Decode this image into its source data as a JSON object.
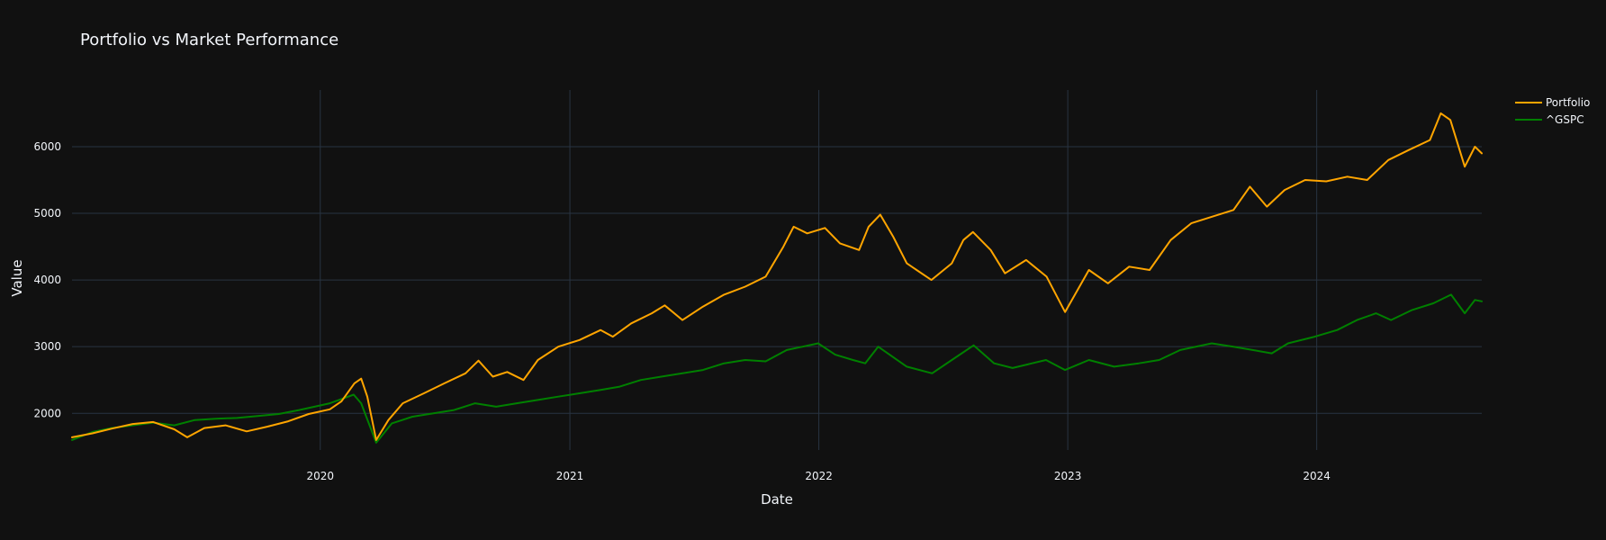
{
  "chart_data": {
    "type": "line",
    "title": "Portfolio vs Market Performance",
    "xlabel": "Date",
    "ylabel": "Value",
    "x_range": [
      "2019-01-02",
      "2024-08-30"
    ],
    "y_range": [
      1450,
      6850
    ],
    "x_ticks": [
      {
        "value": "2020-01-01",
        "label": "2020"
      },
      {
        "value": "2021-01-01",
        "label": "2021"
      },
      {
        "value": "2022-01-01",
        "label": "2022"
      },
      {
        "value": "2023-01-01",
        "label": "2023"
      },
      {
        "value": "2024-01-01",
        "label": "2024"
      }
    ],
    "y_ticks": [
      2000,
      3000,
      4000,
      5000,
      6000
    ],
    "grid": true,
    "legend_position": "top-right",
    "background": "#111111",
    "grid_color": "#283442",
    "series": [
      {
        "name": "Portfolio",
        "color": "#ffa500",
        "points": [
          [
            "2019-01-02",
            1640
          ],
          [
            "2019-02-01",
            1700
          ],
          [
            "2019-03-01",
            1770
          ],
          [
            "2019-04-01",
            1840
          ],
          [
            "2019-05-01",
            1870
          ],
          [
            "2019-06-01",
            1760
          ],
          [
            "2019-06-20",
            1640
          ],
          [
            "2019-07-15",
            1780
          ],
          [
            "2019-08-15",
            1820
          ],
          [
            "2019-09-15",
            1730
          ],
          [
            "2019-10-15",
            1800
          ],
          [
            "2019-11-15",
            1880
          ],
          [
            "2019-12-15",
            1990
          ],
          [
            "2020-01-15",
            2060
          ],
          [
            "2020-02-01",
            2180
          ],
          [
            "2020-02-20",
            2450
          ],
          [
            "2020-03-01",
            2520
          ],
          [
            "2020-03-10",
            2250
          ],
          [
            "2020-03-23",
            1600
          ],
          [
            "2020-04-10",
            1900
          ],
          [
            "2020-05-01",
            2150
          ],
          [
            "2020-06-01",
            2300
          ],
          [
            "2020-07-01",
            2450
          ],
          [
            "2020-08-01",
            2600
          ],
          [
            "2020-08-20",
            2790
          ],
          [
            "2020-09-10",
            2550
          ],
          [
            "2020-10-01",
            2620
          ],
          [
            "2020-10-25",
            2500
          ],
          [
            "2020-11-15",
            2800
          ],
          [
            "2020-12-15",
            3000
          ],
          [
            "2021-01-15",
            3100
          ],
          [
            "2021-02-15",
            3250
          ],
          [
            "2021-03-05",
            3150
          ],
          [
            "2021-04-01",
            3350
          ],
          [
            "2021-05-01",
            3500
          ],
          [
            "2021-05-20",
            3620
          ],
          [
            "2021-06-15",
            3400
          ],
          [
            "2021-07-15",
            3600
          ],
          [
            "2021-08-15",
            3780
          ],
          [
            "2021-09-15",
            3900
          ],
          [
            "2021-10-15",
            4050
          ],
          [
            "2021-11-10",
            4500
          ],
          [
            "2021-11-25",
            4800
          ],
          [
            "2021-12-15",
            4700
          ],
          [
            "2022-01-10",
            4780
          ],
          [
            "2022-02-01",
            4550
          ],
          [
            "2022-03-01",
            4450
          ],
          [
            "2022-03-15",
            4800
          ],
          [
            "2022-04-01",
            4980
          ],
          [
            "2022-04-20",
            4650
          ],
          [
            "2022-05-10",
            4250
          ],
          [
            "2022-06-15",
            4000
          ],
          [
            "2022-07-15",
            4250
          ],
          [
            "2022-08-01",
            4600
          ],
          [
            "2022-08-15",
            4720
          ],
          [
            "2022-09-10",
            4450
          ],
          [
            "2022-10-01",
            4100
          ],
          [
            "2022-11-01",
            4300
          ],
          [
            "2022-12-01",
            4050
          ],
          [
            "2022-12-28",
            3520
          ],
          [
            "2023-02-01",
            4150
          ],
          [
            "2023-03-01",
            3950
          ],
          [
            "2023-04-01",
            4200
          ],
          [
            "2023-05-01",
            4150
          ],
          [
            "2023-06-01",
            4600
          ],
          [
            "2023-07-01",
            4850
          ],
          [
            "2023-08-01",
            4950
          ],
          [
            "2023-09-01",
            5050
          ],
          [
            "2023-09-25",
            5400
          ],
          [
            "2023-10-20",
            5100
          ],
          [
            "2023-11-15",
            5350
          ],
          [
            "2023-12-15",
            5500
          ],
          [
            "2024-01-15",
            5480
          ],
          [
            "2024-02-15",
            5550
          ],
          [
            "2024-03-15",
            5500
          ],
          [
            "2024-04-15",
            5800
          ],
          [
            "2024-05-15",
            5950
          ],
          [
            "2024-06-15",
            6100
          ],
          [
            "2024-07-01",
            6500
          ],
          [
            "2024-07-15",
            6400
          ],
          [
            "2024-08-05",
            5700
          ],
          [
            "2024-08-20",
            6000
          ],
          [
            "2024-08-30",
            5900
          ]
        ]
      },
      {
        "name": "^GSPC",
        "color": "#008000",
        "points": [
          [
            "2019-01-02",
            1600
          ],
          [
            "2019-02-01",
            1720
          ],
          [
            "2019-03-01",
            1780
          ],
          [
            "2019-04-01",
            1820
          ],
          [
            "2019-05-01",
            1860
          ],
          [
            "2019-06-01",
            1820
          ],
          [
            "2019-07-01",
            1900
          ],
          [
            "2019-08-01",
            1920
          ],
          [
            "2019-09-01",
            1930
          ],
          [
            "2019-10-01",
            1960
          ],
          [
            "2019-11-01",
            1990
          ],
          [
            "2019-12-01",
            2050
          ],
          [
            "2020-01-15",
            2150
          ],
          [
            "2020-02-19",
            2280
          ],
          [
            "2020-03-01",
            2150
          ],
          [
            "2020-03-23",
            1560
          ],
          [
            "2020-04-15",
            1850
          ],
          [
            "2020-05-15",
            1950
          ],
          [
            "2020-06-15",
            2000
          ],
          [
            "2020-07-15",
            2050
          ],
          [
            "2020-08-15",
            2150
          ],
          [
            "2020-09-15",
            2100
          ],
          [
            "2020-10-15",
            2150
          ],
          [
            "2020-11-15",
            2200
          ],
          [
            "2020-12-15",
            2250
          ],
          [
            "2021-01-15",
            2300
          ],
          [
            "2021-02-15",
            2350
          ],
          [
            "2021-03-15",
            2400
          ],
          [
            "2021-04-15",
            2500
          ],
          [
            "2021-05-15",
            2550
          ],
          [
            "2021-06-15",
            2600
          ],
          [
            "2021-07-15",
            2650
          ],
          [
            "2021-08-15",
            2750
          ],
          [
            "2021-09-15",
            2800
          ],
          [
            "2021-10-15",
            2780
          ],
          [
            "2021-11-15",
            2950
          ],
          [
            "2021-12-31",
            3050
          ],
          [
            "2022-01-25",
            2880
          ],
          [
            "2022-02-20",
            2800
          ],
          [
            "2022-03-10",
            2750
          ],
          [
            "2022-03-29",
            3000
          ],
          [
            "2022-05-10",
            2700
          ],
          [
            "2022-06-16",
            2600
          ],
          [
            "2022-07-15",
            2800
          ],
          [
            "2022-08-16",
            3020
          ],
          [
            "2022-09-15",
            2750
          ],
          [
            "2022-10-12",
            2680
          ],
          [
            "2022-11-30",
            2800
          ],
          [
            "2022-12-28",
            2650
          ],
          [
            "2023-02-01",
            2800
          ],
          [
            "2023-03-10",
            2700
          ],
          [
            "2023-04-15",
            2750
          ],
          [
            "2023-05-15",
            2800
          ],
          [
            "2023-06-15",
            2950
          ],
          [
            "2023-07-31",
            3050
          ],
          [
            "2023-09-01",
            3000
          ],
          [
            "2023-10-27",
            2900
          ],
          [
            "2023-11-20",
            3050
          ],
          [
            "2023-12-29",
            3150
          ],
          [
            "2024-01-31",
            3250
          ],
          [
            "2024-02-29",
            3400
          ],
          [
            "2024-03-28",
            3500
          ],
          [
            "2024-04-19",
            3400
          ],
          [
            "2024-05-20",
            3550
          ],
          [
            "2024-06-20",
            3650
          ],
          [
            "2024-07-16",
            3780
          ],
          [
            "2024-08-05",
            3500
          ],
          [
            "2024-08-20",
            3700
          ],
          [
            "2024-08-30",
            3680
          ]
        ]
      }
    ]
  }
}
